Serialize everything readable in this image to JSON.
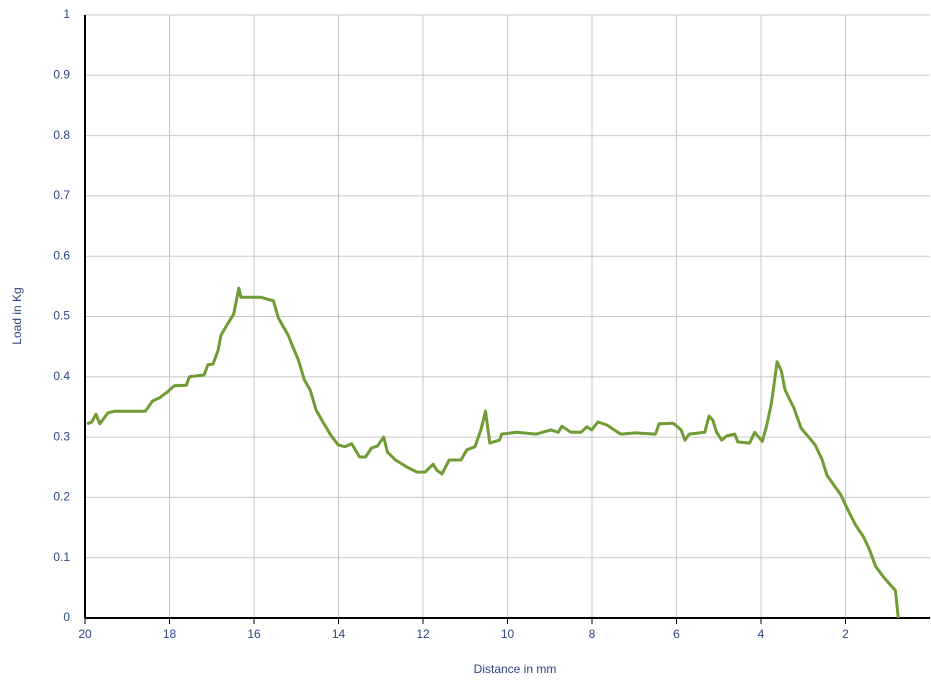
{
  "chart_data": {
    "type": "line",
    "x_label": "Distance in mm",
    "y_label": "Load in Kg",
    "xlim": [
      20,
      0
    ],
    "ylim": [
      0,
      1
    ],
    "xticks": [
      20,
      18,
      16,
      14,
      12,
      10,
      8,
      6,
      4,
      2
    ],
    "yticks": [
      0,
      0.1,
      0.2,
      0.3,
      0.4,
      0.5,
      0.6,
      0.7,
      0.8,
      0.9,
      1
    ],
    "grid": true,
    "series": [
      {
        "color": "#6f9c34",
        "x": [
          19.95,
          19.84,
          19.74,
          19.65,
          19.46,
          19.3,
          18.57,
          18.4,
          18.24,
          18.05,
          17.89,
          17.6,
          17.53,
          17.18,
          17.09,
          16.97,
          16.85,
          16.78,
          16.64,
          16.48,
          16.36,
          16.31,
          15.85,
          15.54,
          15.42,
          15.19,
          15.07,
          14.95,
          14.81,
          14.67,
          14.53,
          14.37,
          14.18,
          14.01,
          13.85,
          13.69,
          13.5,
          13.36,
          13.22,
          13.08,
          12.93,
          12.84,
          12.65,
          12.37,
          12.14,
          11.95,
          11.76,
          11.67,
          11.55,
          11.38,
          11.1,
          10.96,
          10.77,
          10.63,
          10.52,
          10.42,
          10.19,
          10.14,
          9.79,
          9.32,
          8.97,
          8.8,
          8.71,
          8.5,
          8.26,
          8.12,
          8.01,
          7.86,
          7.65,
          7.32,
          6.97,
          6.5,
          6.41,
          6.08,
          5.89,
          5.8,
          5.7,
          5.33,
          5.23,
          5.14,
          5.05,
          4.93,
          4.81,
          4.62,
          4.55,
          4.27,
          4.15,
          3.97,
          3.87,
          3.76,
          3.69,
          3.62,
          3.52,
          3.43,
          3.22,
          3.05,
          2.86,
          2.72,
          2.56,
          2.44,
          2.28,
          2.11,
          1.92,
          1.76,
          1.57,
          1.43,
          1.29,
          1.1,
          0.94,
          0.82,
          0.75
        ],
        "values": [
          0.322,
          0.325,
          0.338,
          0.322,
          0.34,
          0.343,
          0.343,
          0.36,
          0.365,
          0.375,
          0.385,
          0.386,
          0.4,
          0.403,
          0.42,
          0.421,
          0.444,
          0.469,
          0.486,
          0.504,
          0.547,
          0.532,
          0.532,
          0.526,
          0.497,
          0.469,
          0.448,
          0.428,
          0.395,
          0.378,
          0.345,
          0.325,
          0.303,
          0.287,
          0.284,
          0.289,
          0.267,
          0.267,
          0.282,
          0.285,
          0.3,
          0.275,
          0.262,
          0.25,
          0.242,
          0.242,
          0.255,
          0.245,
          0.239,
          0.262,
          0.262,
          0.279,
          0.284,
          0.312,
          0.343,
          0.29,
          0.295,
          0.305,
          0.308,
          0.305,
          0.312,
          0.308,
          0.318,
          0.308,
          0.308,
          0.317,
          0.312,
          0.325,
          0.32,
          0.305,
          0.307,
          0.305,
          0.322,
          0.323,
          0.312,
          0.295,
          0.305,
          0.308,
          0.335,
          0.328,
          0.308,
          0.295,
          0.302,
          0.305,
          0.292,
          0.29,
          0.308,
          0.293,
          0.318,
          0.353,
          0.388,
          0.425,
          0.41,
          0.378,
          0.348,
          0.315,
          0.299,
          0.287,
          0.264,
          0.237,
          0.221,
          0.204,
          0.176,
          0.154,
          0.134,
          0.113,
          0.086,
          0.068,
          0.055,
          0.046,
          0
        ]
      }
    ]
  }
}
